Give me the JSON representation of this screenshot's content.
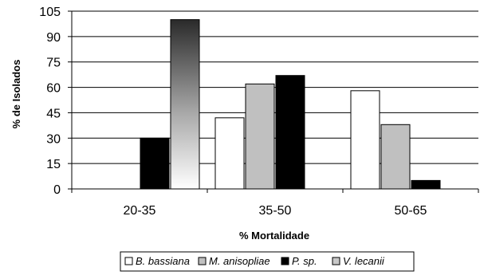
{
  "chart_data": {
    "type": "bar",
    "xlabel": "% Mortalidade",
    "ylabel": "% de Isolados",
    "categories": [
      "20-35",
      "35-50",
      "50-65"
    ],
    "ylim": [
      0,
      105
    ],
    "yticks": [
      "0",
      "15",
      "30",
      "45",
      "60",
      "75",
      "90",
      "105"
    ],
    "grid": true,
    "legend_position": "bottom",
    "series": [
      {
        "name": "B. bassiana",
        "values": [
          0,
          42,
          58
        ],
        "color": "#ffffff",
        "fill": "solid"
      },
      {
        "name": "M. anisopliae",
        "values": [
          0,
          62,
          38
        ],
        "color": "#c0c0c0",
        "fill": "solid"
      },
      {
        "name": "P. sp.",
        "values": [
          30,
          67,
          5
        ],
        "color": "#000000",
        "fill": "solid"
      },
      {
        "name": "V. lecanii",
        "values": [
          100,
          0,
          0
        ],
        "color": "#c8c8c8",
        "fill": "gradient"
      }
    ]
  }
}
